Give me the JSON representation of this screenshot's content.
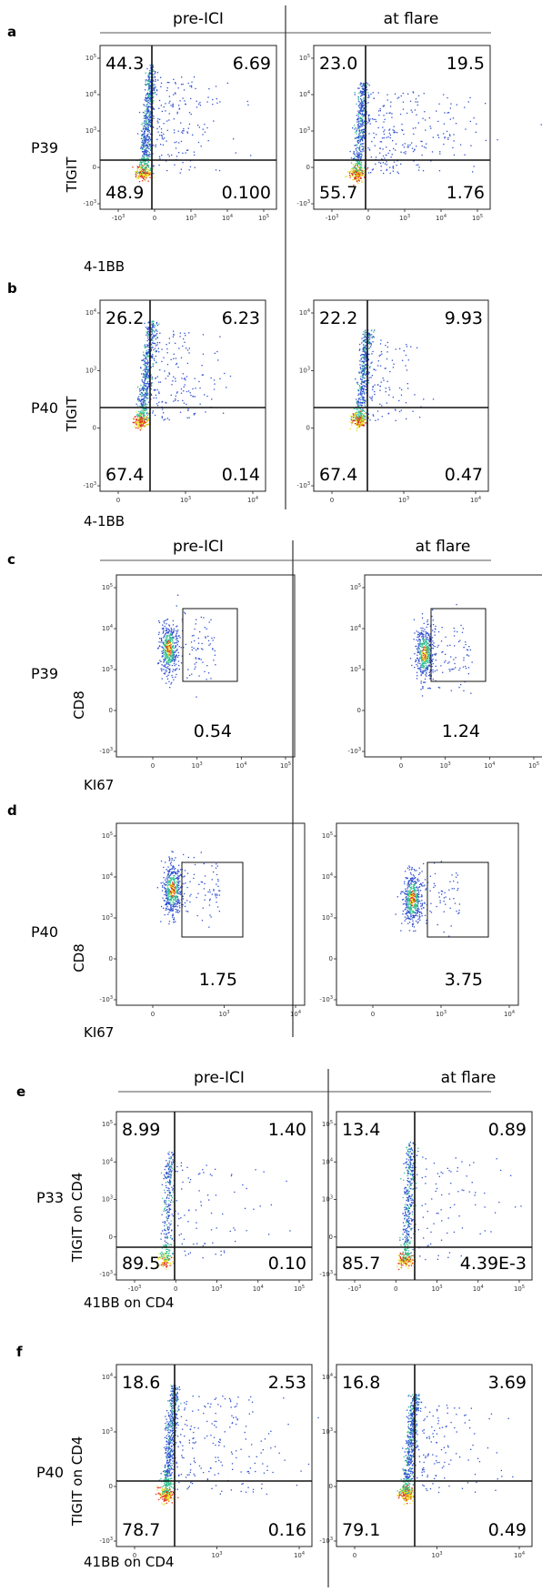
{
  "column_headers": {
    "pre": "pre-ICI",
    "post": "at flare"
  },
  "colors": {
    "dot_low": "#2f4fd0",
    "dot_mid": "#2fbf8f",
    "dot_high": "#e8e020",
    "dot_peak": "#e02a1a",
    "axis": "#222222"
  },
  "chart_data": [
    {
      "panel": "a",
      "type": "scatter",
      "subtype": "flow-cytometry-quadrant",
      "row_label": "P39",
      "xlabel": "4-1BB",
      "ylabel": "TIGIT",
      "x_ticks": [
        "-10^3",
        "0",
        "10^3",
        "10^4",
        "10^5"
      ],
      "y_ticks": [
        "10^5",
        "10^4",
        "10^3",
        "0",
        "-10^3"
      ],
      "plots": [
        {
          "condition": "pre-ICI",
          "quadrants": {
            "upper_left": "44.3",
            "upper_right": "6.69",
            "lower_left": "48.9",
            "lower_right": "0.100"
          }
        },
        {
          "condition": "at flare",
          "quadrants": {
            "upper_left": "23.0",
            "upper_right": "19.5",
            "lower_left": "55.7",
            "lower_right": "1.76"
          }
        }
      ]
    },
    {
      "panel": "b",
      "type": "scatter",
      "subtype": "flow-cytometry-quadrant",
      "row_label": "P40",
      "xlabel": "4-1BB",
      "ylabel": "TIGIT",
      "x_ticks": [
        "0",
        "10^3",
        "10^4"
      ],
      "y_ticks": [
        "10^4",
        "10^3",
        "0",
        "-10^3"
      ],
      "plots": [
        {
          "condition": "pre-ICI",
          "quadrants": {
            "upper_left": "26.2",
            "upper_right": "6.23",
            "lower_left": "67.4",
            "lower_right": "0.14"
          }
        },
        {
          "condition": "at flare",
          "quadrants": {
            "upper_left": "22.2",
            "upper_right": "9.93",
            "lower_left": "67.4",
            "lower_right": "0.47"
          }
        }
      ]
    },
    {
      "panel": "c",
      "type": "scatter",
      "subtype": "flow-cytometry-gate",
      "row_label": "P39",
      "xlabel": "KI67",
      "ylabel": "CD8",
      "x_ticks": [
        "0",
        "10^3",
        "10^4",
        "10^5"
      ],
      "y_ticks": [
        "10^5",
        "10^4",
        "10^3",
        "0",
        "-10^3"
      ],
      "plots": [
        {
          "condition": "pre-ICI",
          "gate_value": "0.54"
        },
        {
          "condition": "at flare",
          "gate_value": "1.24"
        }
      ]
    },
    {
      "panel": "d",
      "type": "scatter",
      "subtype": "flow-cytometry-gate",
      "row_label": "P40",
      "xlabel": "KI67",
      "ylabel": "CD8",
      "x_ticks": [
        "0",
        "10^3",
        "10^4"
      ],
      "y_ticks": [
        "10^5",
        "10^4",
        "10^3",
        "0",
        "-10^3"
      ],
      "plots": [
        {
          "condition": "pre-ICI",
          "gate_value": "1.75"
        },
        {
          "condition": "at flare",
          "gate_value": "3.75"
        }
      ]
    },
    {
      "panel": "e",
      "type": "scatter",
      "subtype": "flow-cytometry-quadrant",
      "row_label": "P33",
      "xlabel": "41BB on CD4",
      "ylabel": "TIGIT on CD4",
      "x_ticks": [
        "-10^3",
        "0",
        "10^3",
        "10^4",
        "10^5"
      ],
      "y_ticks": [
        "10^5",
        "10^4",
        "10^3",
        "0",
        "-10^3"
      ],
      "plots": [
        {
          "condition": "pre-ICI",
          "quadrants": {
            "upper_left": "8.99",
            "upper_right": "1.40",
            "lower_left": "89.5",
            "lower_right": "0.10"
          }
        },
        {
          "condition": "at flare",
          "quadrants": {
            "upper_left": "13.4",
            "upper_right": "0.89",
            "lower_left": "85.7",
            "lower_right": "4.39E-3"
          }
        }
      ]
    },
    {
      "panel": "f",
      "type": "scatter",
      "subtype": "flow-cytometry-quadrant",
      "row_label": "P40",
      "xlabel": "41BB on CD4",
      "ylabel": "TIGIT on CD4",
      "x_ticks": [
        "0",
        "10^3",
        "10^4"
      ],
      "y_ticks": [
        "10^4",
        "10^3",
        "0",
        "-10^3"
      ],
      "plots": [
        {
          "condition": "pre-ICI",
          "quadrants": {
            "upper_left": "18.6",
            "upper_right": "2.53",
            "lower_left": "78.7",
            "lower_right": "0.16"
          }
        },
        {
          "condition": "at flare",
          "quadrants": {
            "upper_left": "16.8",
            "upper_right": "3.69",
            "lower_left": "79.1",
            "lower_right": "0.49"
          }
        }
      ]
    }
  ]
}
